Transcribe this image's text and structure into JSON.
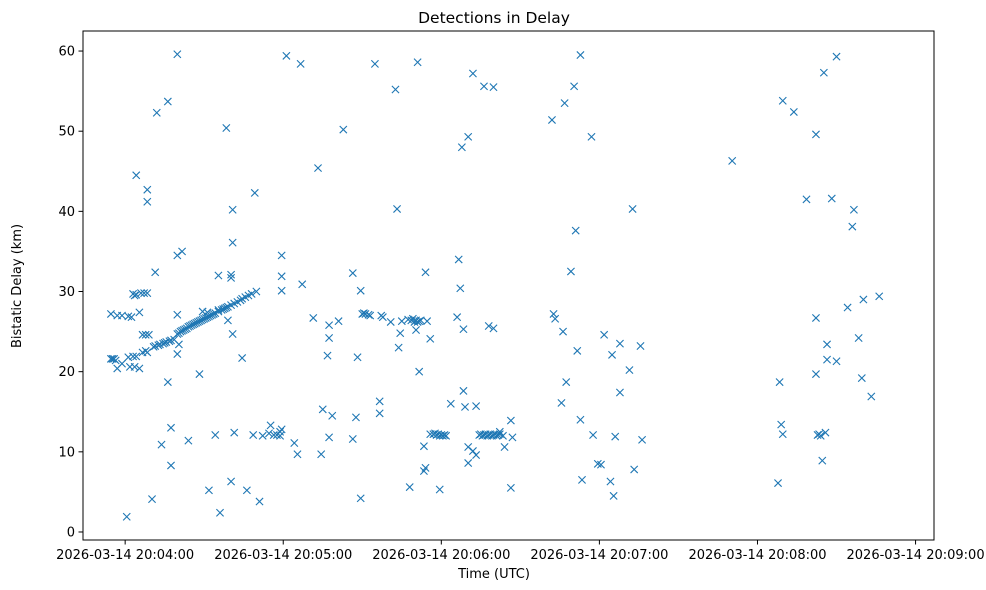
{
  "chart_data": {
    "type": "scatter",
    "title": "Detections in Delay",
    "xlabel": "Time (UTC)",
    "ylabel": "Bistatic Delay (km)",
    "marker": "x",
    "color": "#1f77b4",
    "x_unit": "seconds after 2026-03-14 20:04:00",
    "xlim": [
      -16,
      307
    ],
    "ylim": [
      -1,
      62.5
    ],
    "grid": false,
    "legend": "none",
    "x_ticks": [
      {
        "value": 0,
        "label": "2026-03-14 20:04:00"
      },
      {
        "value": 60,
        "label": "2026-03-14 20:05:00"
      },
      {
        "value": 120,
        "label": "2026-03-14 20:06:00"
      },
      {
        "value": 180,
        "label": "2026-03-14 20:07:00"
      },
      {
        "value": 240,
        "label": "2026-03-14 20:08:00"
      },
      {
        "value": 300,
        "label": "2026-03-14 20:09:00"
      }
    ],
    "y_ticks": [
      {
        "value": 0,
        "label": "0"
      },
      {
        "value": 10,
        "label": "10"
      },
      {
        "value": 20,
        "label": "20"
      },
      {
        "value": 30,
        "label": "30"
      },
      {
        "value": 40,
        "label": "40"
      },
      {
        "value": 50,
        "label": "50"
      },
      {
        "value": 60,
        "label": "60"
      }
    ],
    "series": [
      {
        "name": "detections",
        "points": [
          [
            -5.4,
            27.2
          ],
          [
            -3.0,
            27.0
          ],
          [
            -1.2,
            27.0
          ],
          [
            1.2,
            26.9
          ],
          [
            2.4,
            26.8
          ],
          [
            -5.4,
            21.6
          ],
          [
            -4.8,
            21.6
          ],
          [
            -4.2,
            21.6
          ],
          [
            -3.6,
            21.4
          ],
          [
            -3.0,
            20.4
          ],
          [
            -1.2,
            21.0
          ],
          [
            1.2,
            21.8
          ],
          [
            1.8,
            20.6
          ],
          [
            3.0,
            21.9
          ],
          [
            3.6,
            20.6
          ],
          [
            4.2,
            21.9
          ],
          [
            5.4,
            20.4
          ],
          [
            3.0,
            29.7
          ],
          [
            3.6,
            29.5
          ],
          [
            4.2,
            29.6
          ],
          [
            6.0,
            29.8
          ],
          [
            7.2,
            29.8
          ],
          [
            8.4,
            29.8
          ],
          [
            6.6,
            24.6
          ],
          [
            7.8,
            24.6
          ],
          [
            9.0,
            24.6
          ],
          [
            6.6,
            22.4
          ],
          [
            7.8,
            22.6
          ],
          [
            8.4,
            22.4
          ],
          [
            5.4,
            27.4
          ],
          [
            10.8,
            23.1
          ],
          [
            11.4,
            23.2
          ],
          [
            12.6,
            23.3
          ],
          [
            13.2,
            23.4
          ],
          [
            14.4,
            23.5
          ],
          [
            15.0,
            23.6
          ],
          [
            15.6,
            23.7
          ],
          [
            16.8,
            23.8
          ],
          [
            17.4,
            23.9
          ],
          [
            18.6,
            24.0
          ],
          [
            19.8,
            24.7
          ],
          [
            20.4,
            24.8
          ],
          [
            21.0,
            25.0
          ],
          [
            21.6,
            25.1
          ],
          [
            22.2,
            25.2
          ],
          [
            22.8,
            25.3
          ],
          [
            23.4,
            25.4
          ],
          [
            24.0,
            25.6
          ],
          [
            24.6,
            25.7
          ],
          [
            25.2,
            25.8
          ],
          [
            25.8,
            25.9
          ],
          [
            26.4,
            26.0
          ],
          [
            27.0,
            26.1
          ],
          [
            27.6,
            26.2
          ],
          [
            28.2,
            26.3
          ],
          [
            28.8,
            26.4
          ],
          [
            29.4,
            26.5
          ],
          [
            30.0,
            26.6
          ],
          [
            30.6,
            26.7
          ],
          [
            31.2,
            26.8
          ],
          [
            31.8,
            26.9
          ],
          [
            32.4,
            27.0
          ],
          [
            33.0,
            27.1
          ],
          [
            33.6,
            27.2
          ],
          [
            34.2,
            27.3
          ],
          [
            35.4,
            27.5
          ],
          [
            36.6,
            27.7
          ],
          [
            37.2,
            27.8
          ],
          [
            37.8,
            27.9
          ],
          [
            38.4,
            28.0
          ],
          [
            39.0,
            28.1
          ],
          [
            40.2,
            28.3
          ],
          [
            41.4,
            28.5
          ],
          [
            42.6,
            28.7
          ],
          [
            43.8,
            28.9
          ],
          [
            44.4,
            29.1
          ],
          [
            45.6,
            29.3
          ],
          [
            46.8,
            29.5
          ],
          [
            48.0,
            29.7
          ],
          [
            49.8,
            30.0
          ],
          [
            4.2,
            44.5
          ],
          [
            8.4,
            42.7
          ],
          [
            8.4,
            41.2
          ],
          [
            12.0,
            52.3
          ],
          [
            16.2,
            53.7
          ],
          [
            19.8,
            59.6
          ],
          [
            21.6,
            35.0
          ],
          [
            19.8,
            34.5
          ],
          [
            19.8,
            27.1
          ],
          [
            19.8,
            22.2
          ],
          [
            20.4,
            23.4
          ],
          [
            11.4,
            32.4
          ],
          [
            13.8,
            10.9
          ],
          [
            16.2,
            18.7
          ],
          [
            17.4,
            13.0
          ],
          [
            17.4,
            8.3
          ],
          [
            10.2,
            4.1
          ],
          [
            0.6,
            1.9
          ],
          [
            24.0,
            11.4
          ],
          [
            28.2,
            19.7
          ],
          [
            29.4,
            27.5
          ],
          [
            31.2,
            27.4
          ],
          [
            31.8,
            5.2
          ],
          [
            34.2,
            12.1
          ],
          [
            35.4,
            32.0
          ],
          [
            35.4,
            27.7
          ],
          [
            36.0,
            2.4
          ],
          [
            38.4,
            50.4
          ],
          [
            39.0,
            26.4
          ],
          [
            40.2,
            32.1
          ],
          [
            40.2,
            31.7
          ],
          [
            40.8,
            40.2
          ],
          [
            40.8,
            36.1
          ],
          [
            40.8,
            24.7
          ],
          [
            41.4,
            12.4
          ],
          [
            40.2,
            6.3
          ],
          [
            44.4,
            21.7
          ],
          [
            46.2,
            5.2
          ],
          [
            49.2,
            42.3
          ],
          [
            48.6,
            12.1
          ],
          [
            51.0,
            3.8
          ],
          [
            52.2,
            12.0
          ],
          [
            54.6,
            12.3
          ],
          [
            55.2,
            13.3
          ],
          [
            56.4,
            12.1
          ],
          [
            57.6,
            12.1
          ],
          [
            58.8,
            12.5
          ],
          [
            58.8,
            12.0
          ],
          [
            59.4,
            34.5
          ],
          [
            59.4,
            31.9
          ],
          [
            59.4,
            30.1
          ],
          [
            59.4,
            12.8
          ],
          [
            61.2,
            59.4
          ],
          [
            64.2,
            11.1
          ],
          [
            65.4,
            9.7
          ],
          [
            66.6,
            58.4
          ],
          [
            67.2,
            30.9
          ],
          [
            71.4,
            26.7
          ],
          [
            73.2,
            45.4
          ],
          [
            74.4,
            9.7
          ],
          [
            75.0,
            15.3
          ],
          [
            76.8,
            22.0
          ],
          [
            77.4,
            24.2
          ],
          [
            77.4,
            25.8
          ],
          [
            77.4,
            11.8
          ],
          [
            78.6,
            14.5
          ],
          [
            81.0,
            26.3
          ],
          [
            82.8,
            50.2
          ],
          [
            86.4,
            32.3
          ],
          [
            86.4,
            11.6
          ],
          [
            87.6,
            14.3
          ],
          [
            88.2,
            21.8
          ],
          [
            89.4,
            4.2
          ],
          [
            89.4,
            30.1
          ],
          [
            90.0,
            27.2
          ],
          [
            90.6,
            27.3
          ],
          [
            91.2,
            27.2
          ],
          [
            92.4,
            27.1
          ],
          [
            93.0,
            27.0
          ],
          [
            94.8,
            58.4
          ],
          [
            96.6,
            16.3
          ],
          [
            96.6,
            14.8
          ],
          [
            97.2,
            27.0
          ],
          [
            97.8,
            26.8
          ],
          [
            100.8,
            26.2
          ],
          [
            102.6,
            55.2
          ],
          [
            103.2,
            40.3
          ],
          [
            103.8,
            23.0
          ],
          [
            104.4,
            24.8
          ],
          [
            105.0,
            26.3
          ],
          [
            107.4,
            26.5
          ],
          [
            108.6,
            26.4
          ],
          [
            109.2,
            26.6
          ],
          [
            109.8,
            26.2
          ],
          [
            110.4,
            26.4
          ],
          [
            111.0,
            26.2
          ],
          [
            111.6,
            26.3
          ],
          [
            112.2,
            26.4
          ],
          [
            108.0,
            5.6
          ],
          [
            110.4,
            25.2
          ],
          [
            111.0,
            58.6
          ],
          [
            111.6,
            20.0
          ],
          [
            113.4,
            10.7
          ],
          [
            113.4,
            7.6
          ],
          [
            114.0,
            32.4
          ],
          [
            114.0,
            8.0
          ],
          [
            114.6,
            26.3
          ],
          [
            115.8,
            24.1
          ],
          [
            115.8,
            12.2
          ],
          [
            117.0,
            12.2
          ],
          [
            117.6,
            12.3
          ],
          [
            118.2,
            12.1
          ],
          [
            118.8,
            12.2
          ],
          [
            119.4,
            12.0
          ],
          [
            120.0,
            12.1
          ],
          [
            120.6,
            12.0
          ],
          [
            121.2,
            12.1
          ],
          [
            121.8,
            12.0
          ],
          [
            119.4,
            5.3
          ],
          [
            123.6,
            16.0
          ],
          [
            126.0,
            26.8
          ],
          [
            126.6,
            34.0
          ],
          [
            127.2,
            30.4
          ],
          [
            128.4,
            25.3
          ],
          [
            128.4,
            17.6
          ],
          [
            129.0,
            15.6
          ],
          [
            130.2,
            10.6
          ],
          [
            130.2,
            8.6
          ],
          [
            127.8,
            48.0
          ],
          [
            130.2,
            49.3
          ],
          [
            132.0,
            57.2
          ],
          [
            132.0,
            10.1
          ],
          [
            133.2,
            15.7
          ],
          [
            133.2,
            9.6
          ],
          [
            134.4,
            12.1
          ],
          [
            135.0,
            12.2
          ],
          [
            135.6,
            12.0
          ],
          [
            136.2,
            12.1
          ],
          [
            136.8,
            12.2
          ],
          [
            137.4,
            12.0
          ],
          [
            138.0,
            12.1
          ],
          [
            138.6,
            12.2
          ],
          [
            139.2,
            12.0
          ],
          [
            139.8,
            12.1
          ],
          [
            140.4,
            12.2
          ],
          [
            141.0,
            12.0
          ],
          [
            141.6,
            12.1
          ],
          [
            142.2,
            12.2
          ],
          [
            143.4,
            12.0
          ],
          [
            136.2,
            55.6
          ],
          [
            138.0,
            25.7
          ],
          [
            139.8,
            55.5
          ],
          [
            139.8,
            25.4
          ],
          [
            142.2,
            12.5
          ],
          [
            144.0,
            10.6
          ],
          [
            146.4,
            13.9
          ],
          [
            147.0,
            11.8
          ],
          [
            146.4,
            5.5
          ],
          [
            162.0,
            51.4
          ],
          [
            166.8,
            53.5
          ],
          [
            170.4,
            55.6
          ],
          [
            172.8,
            59.5
          ],
          [
            169.2,
            32.5
          ],
          [
            171.0,
            37.6
          ],
          [
            171.6,
            22.6
          ],
          [
            162.6,
            27.2
          ],
          [
            163.2,
            26.6
          ],
          [
            166.2,
            25.0
          ],
          [
            165.6,
            16.1
          ],
          [
            167.4,
            18.7
          ],
          [
            172.8,
            14.0
          ],
          [
            173.4,
            6.5
          ],
          [
            177.0,
            49.3
          ],
          [
            177.6,
            12.1
          ],
          [
            179.4,
            8.5
          ],
          [
            180.6,
            8.4
          ],
          [
            181.8,
            24.6
          ],
          [
            184.8,
            22.1
          ],
          [
            185.4,
            4.5
          ],
          [
            186.0,
            11.9
          ],
          [
            184.2,
            6.3
          ],
          [
            187.8,
            23.5
          ],
          [
            187.8,
            17.4
          ],
          [
            191.4,
            20.2
          ],
          [
            192.6,
            40.3
          ],
          [
            193.2,
            7.8
          ],
          [
            195.6,
            23.2
          ],
          [
            196.2,
            11.5
          ],
          [
            230.4,
            46.3
          ],
          [
            247.8,
            6.1
          ],
          [
            248.4,
            18.7
          ],
          [
            249.0,
            13.4
          ],
          [
            249.6,
            12.2
          ],
          [
            249.6,
            53.8
          ],
          [
            253.8,
            52.4
          ],
          [
            258.6,
            41.5
          ],
          [
            262.2,
            49.6
          ],
          [
            262.2,
            26.7
          ],
          [
            262.2,
            19.7
          ],
          [
            262.8,
            12.1
          ],
          [
            263.4,
            12.2
          ],
          [
            264.0,
            12.0
          ],
          [
            265.8,
            12.4
          ],
          [
            264.6,
            8.9
          ],
          [
            265.2,
            57.3
          ],
          [
            266.4,
            23.4
          ],
          [
            266.4,
            21.5
          ],
          [
            268.2,
            41.6
          ],
          [
            270.0,
            21.3
          ],
          [
            270.0,
            59.3
          ],
          [
            274.2,
            28.0
          ],
          [
            276.0,
            38.1
          ],
          [
            276.6,
            40.2
          ],
          [
            278.4,
            24.2
          ],
          [
            279.6,
            19.2
          ],
          [
            280.2,
            29.0
          ],
          [
            283.2,
            16.9
          ],
          [
            286.2,
            29.4
          ]
        ]
      }
    ]
  }
}
